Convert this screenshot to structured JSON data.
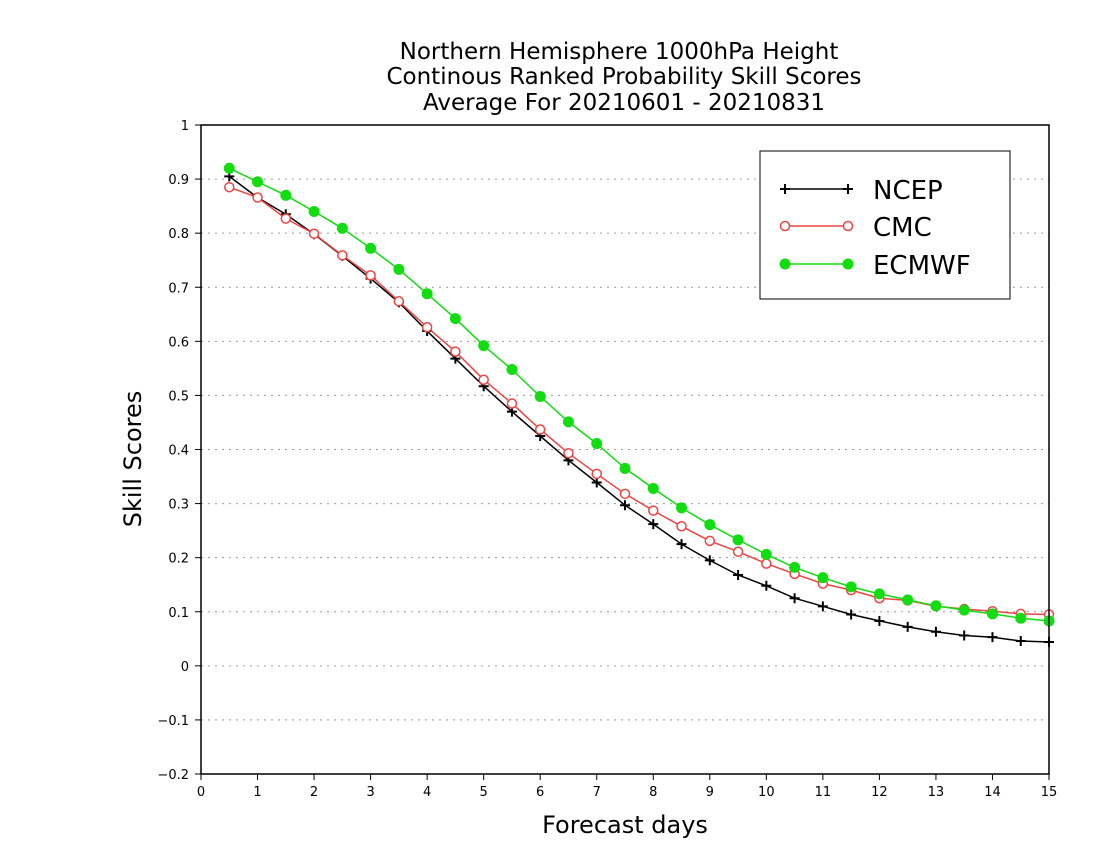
{
  "chart_data": {
    "type": "line",
    "title": [
      "Northern Hemisphere 1000hPa Height",
      "Continous Ranked Probability Skill Scores",
      "Average For 20210601 - 20210831"
    ],
    "xlabel": "Forecast days",
    "ylabel": "Skill Scores",
    "xlim": [
      0,
      15
    ],
    "ylim": [
      -0.2,
      1
    ],
    "xticks": [
      "0",
      "1",
      "2",
      "3",
      "4",
      "5",
      "6",
      "7",
      "8",
      "9",
      "10",
      "11",
      "12",
      "13",
      "14",
      "15"
    ],
    "yticks": [
      "−0.2",
      "−0.1",
      "0",
      "0.1",
      "0.2",
      "0.3",
      "0.4",
      "0.5",
      "0.6",
      "0.7",
      "0.8",
      "0.9",
      "1"
    ],
    "grid": "dotted horizontal",
    "legend_position": "top-right",
    "x": [
      0.5,
      1,
      1.5,
      2,
      2.5,
      3,
      3.5,
      4,
      4.5,
      5,
      5.5,
      6,
      6.5,
      7,
      7.5,
      8,
      8.5,
      9,
      9.5,
      10,
      10.5,
      11,
      11.5,
      12,
      12.5,
      13,
      13.5,
      14,
      14.5,
      15
    ],
    "series": [
      {
        "name": "NCEP",
        "color": "#000000",
        "marker": "plus",
        "values": [
          0.905,
          0.866,
          0.835,
          0.798,
          0.758,
          0.716,
          0.672,
          0.619,
          0.568,
          0.517,
          0.47,
          0.425,
          0.38,
          0.339,
          0.297,
          0.262,
          0.225,
          0.195,
          0.168,
          0.148,
          0.125,
          0.11,
          0.095,
          0.083,
          0.072,
          0.063,
          0.056,
          0.053,
          0.046,
          0.044
        ]
      },
      {
        "name": "CMC",
        "color": "#ee4444",
        "marker": "open-circle",
        "values": [
          0.885,
          0.866,
          0.827,
          0.799,
          0.759,
          0.722,
          0.674,
          0.626,
          0.581,
          0.529,
          0.485,
          0.437,
          0.393,
          0.355,
          0.318,
          0.287,
          0.258,
          0.231,
          0.211,
          0.189,
          0.17,
          0.152,
          0.14,
          0.125,
          0.121,
          0.11,
          0.105,
          0.101,
          0.096,
          0.095
        ]
      },
      {
        "name": "ECMWF",
        "color": "#11dd11",
        "marker": "filled-circle",
        "values": [
          0.92,
          0.895,
          0.87,
          0.84,
          0.809,
          0.772,
          0.733,
          0.688,
          0.642,
          0.592,
          0.548,
          0.498,
          0.451,
          0.411,
          0.365,
          0.328,
          0.292,
          0.261,
          0.233,
          0.206,
          0.182,
          0.163,
          0.146,
          0.133,
          0.122,
          0.111,
          0.103,
          0.096,
          0.088,
          0.083
        ]
      }
    ]
  }
}
